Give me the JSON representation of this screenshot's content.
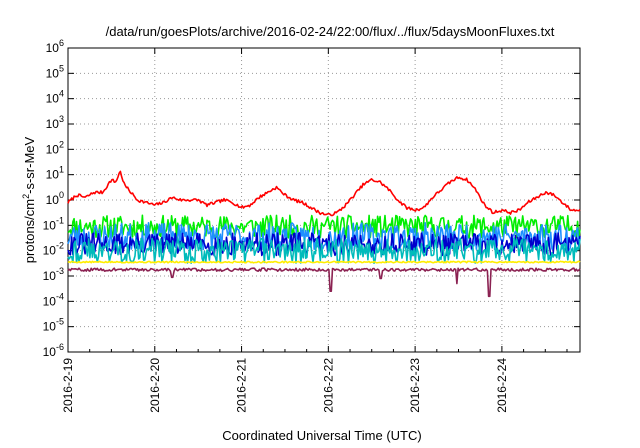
{
  "chart_data": {
    "type": "line",
    "title": "/data/run/goesPlots/archive/2016-02-24/22:00/flux/../flux/5daysMoonFluxes.txt",
    "xlabel": "Coordinated Universal Time (UTC)",
    "ylabel": {
      "pre": "protons/cm",
      "sup": "2",
      "post": "-s-sr-MeV"
    },
    "x_axis": {
      "min": 0,
      "max": 5.9,
      "unit": "days since 2016-2-19 00:00"
    },
    "y_axis": {
      "scale": "log",
      "min_exp": -6,
      "max_exp": 6,
      "base": "10"
    },
    "x_ticks": [
      {
        "x": 0,
        "label": "2016-2-19"
      },
      {
        "x": 1,
        "label": "2016-2-20"
      },
      {
        "x": 2,
        "label": "2016-2-21"
      },
      {
        "x": 3,
        "label": "2016-2-22"
      },
      {
        "x": 4,
        "label": "2016-2-23"
      },
      {
        "x": 5,
        "label": "2016-2-24"
      }
    ],
    "y_ticks": [
      -6,
      -5,
      -4,
      -3,
      -2,
      -1,
      0,
      1,
      2,
      3,
      4,
      5,
      6
    ],
    "grid": true,
    "legend": "none",
    "series": [
      {
        "color": "#ff0000",
        "noise": 0.06,
        "seed": 7,
        "x": [
          0.0,
          0.1,
          0.2,
          0.3,
          0.4,
          0.5,
          0.55,
          0.6,
          0.65,
          0.7,
          0.8,
          0.9,
          1.0,
          1.1,
          1.2,
          1.3,
          1.4,
          1.5,
          1.6,
          1.7,
          1.8,
          1.9,
          2.0,
          2.1,
          2.2,
          2.3,
          2.4,
          2.5,
          2.6,
          2.7,
          2.8,
          2.9,
          3.0,
          3.1,
          3.2,
          3.3,
          3.4,
          3.5,
          3.6,
          3.7,
          3.8,
          3.9,
          4.0,
          4.1,
          4.2,
          4.3,
          4.4,
          4.5,
          4.6,
          4.7,
          4.8,
          4.9,
          5.0,
          5.1,
          5.2,
          5.3,
          5.4,
          5.5,
          5.6,
          5.7,
          5.8,
          5.9
        ],
        "y": [
          -0.1,
          0.2,
          0.1,
          0.3,
          0.3,
          0.8,
          0.7,
          1.15,
          0.6,
          0.4,
          0.0,
          -0.1,
          -0.2,
          -0.1,
          0.1,
          0.0,
          0.0,
          0.0,
          -0.2,
          -0.1,
          0.0,
          -0.1,
          -0.3,
          -0.2,
          0.1,
          0.3,
          0.5,
          0.2,
          0.0,
          -0.1,
          -0.3,
          -0.5,
          -0.6,
          -0.5,
          -0.2,
          0.2,
          0.6,
          0.8,
          0.7,
          0.4,
          0.0,
          -0.3,
          -0.4,
          -0.3,
          0.1,
          0.4,
          0.7,
          0.9,
          0.8,
          0.4,
          -0.2,
          -0.5,
          -0.4,
          -0.5,
          -0.4,
          -0.1,
          0.1,
          0.3,
          0.2,
          -0.1,
          -0.4,
          -0.4
        ]
      },
      {
        "color": "#00ee00",
        "level": -1.05,
        "noise": 0.45,
        "seed": 11
      },
      {
        "color": "#1e90ff",
        "level": -1.45,
        "noise": 0.55,
        "seed": 23
      },
      {
        "color": "#0000cc",
        "level": -1.75,
        "noise": 0.45,
        "seed": 31
      },
      {
        "color": "#00bbbb",
        "level": -2.0,
        "noise": 0.5,
        "seed": 43
      },
      {
        "color": "#ffee00",
        "level": -2.45,
        "noise": 0.03,
        "seed": 5
      },
      {
        "color": "#8b2252",
        "level": -2.75,
        "noise": 0.06,
        "seed": 59,
        "dips": [
          {
            "x": 3.03,
            "y": -3.6
          },
          {
            "x": 3.6,
            "y": -3.1
          },
          {
            "x": 4.48,
            "y": -3.3
          },
          {
            "x": 4.85,
            "y": -3.8
          },
          {
            "x": 1.2,
            "y": -3.05
          }
        ]
      }
    ]
  }
}
